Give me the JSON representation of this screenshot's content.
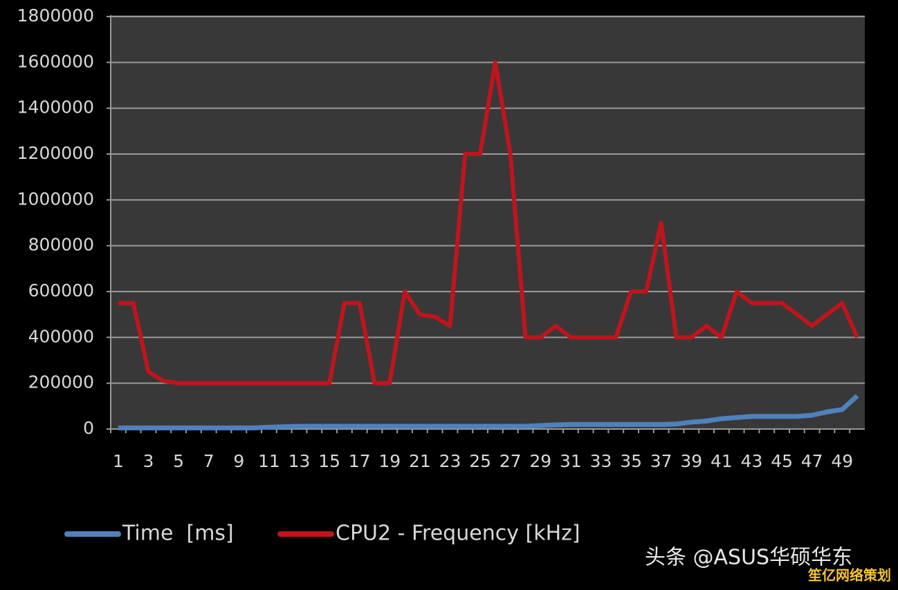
{
  "chart_data": {
    "type": "line",
    "categories": [
      "1",
      null,
      "3",
      null,
      "5",
      null,
      "7",
      null,
      "9",
      null,
      "11",
      null,
      "13",
      null,
      "15",
      null,
      "17",
      null,
      "19",
      null,
      "21",
      null,
      "23",
      null,
      "25",
      null,
      "27",
      null,
      "29",
      null,
      "31",
      null,
      "33",
      null,
      "35",
      null,
      "37",
      null,
      "39",
      null,
      "41",
      null,
      "43",
      null,
      "45",
      null,
      "47",
      null,
      "49",
      null
    ],
    "series": [
      {
        "name": "Time  [ms]",
        "color": "#4f81bd",
        "values": [
          5000,
          5000,
          5000,
          5000,
          5000,
          5000,
          5000,
          5000,
          5000,
          5000,
          8000,
          10000,
          12000,
          12000,
          12000,
          12000,
          12000,
          12000,
          12000,
          12000,
          12000,
          12000,
          12000,
          12000,
          12000,
          12000,
          12000,
          12000,
          15000,
          18000,
          20000,
          20000,
          20000,
          20000,
          20000,
          20000,
          20000,
          22000,
          30000,
          35000,
          45000,
          50000,
          55000,
          55000,
          55000,
          55000,
          60000,
          75000,
          85000,
          145000
        ]
      },
      {
        "name": "CPU2 - Frequency [kHz]",
        "color": "#c0141c",
        "values": [
          550000,
          550000,
          250000,
          210000,
          200000,
          200000,
          200000,
          200000,
          200000,
          200000,
          200000,
          200000,
          200000,
          200000,
          200000,
          550000,
          550000,
          200000,
          200000,
          600000,
          500000,
          490000,
          450000,
          1200000,
          1200000,
          1600000,
          1200000,
          400000,
          400000,
          450000,
          400000,
          400000,
          400000,
          400000,
          600000,
          600000,
          900000,
          400000,
          400000,
          450000,
          400000,
          600000,
          550000,
          550000,
          550000,
          500000,
          450000,
          500000,
          550000,
          400000
        ]
      }
    ],
    "ylim": [
      0,
      1800000
    ],
    "yticks": [
      0,
      200000,
      400000,
      600000,
      800000,
      1000000,
      1200000,
      1400000,
      1600000,
      1800000
    ],
    "grid": true,
    "legend": "bottom",
    "watermark": [
      "头条 @ASUS华硕华东",
      "笙亿网络策划"
    ]
  }
}
